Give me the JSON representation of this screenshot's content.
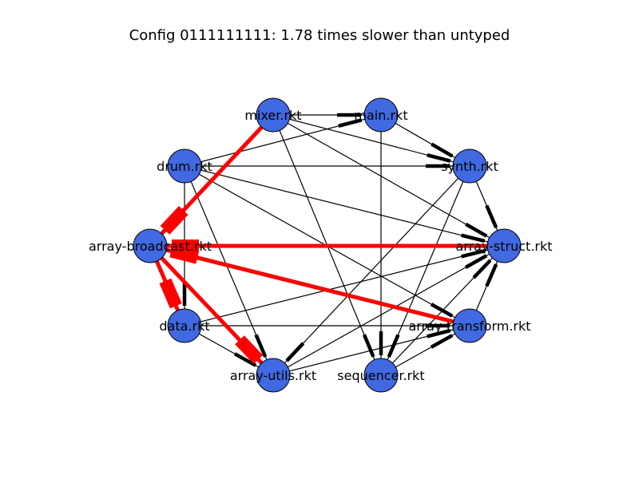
{
  "title": "Config 0111111111: 1.78 times slower than untyped",
  "colors": {
    "node_fill": "#4169e1",
    "node_stroke": "#000000",
    "edge_typed": "#000000",
    "edge_boundary": "#ff0000"
  },
  "nodes": [
    {
      "id": "main",
      "label": "main.rkt"
    },
    {
      "id": "mixer",
      "label": "mixer.rkt"
    },
    {
      "id": "drum",
      "label": "drum.rkt"
    },
    {
      "id": "broadcast",
      "label": "array-broadcast.rkt"
    },
    {
      "id": "data",
      "label": "data.rkt"
    },
    {
      "id": "utils",
      "label": "array-utils.rkt"
    },
    {
      "id": "sequencer",
      "label": "sequencer.rkt"
    },
    {
      "id": "transform",
      "label": "array-transform.rkt"
    },
    {
      "id": "struct",
      "label": "array-struct.rkt"
    },
    {
      "id": "synth",
      "label": "synth.rkt"
    }
  ],
  "edges": [
    {
      "from": "mixer",
      "to": "main",
      "kind": "typed"
    },
    {
      "from": "drum",
      "to": "main",
      "kind": "typed"
    },
    {
      "from": "main",
      "to": "synth",
      "kind": "typed"
    },
    {
      "from": "main",
      "to": "sequencer",
      "kind": "typed"
    },
    {
      "from": "mixer",
      "to": "synth",
      "kind": "typed"
    },
    {
      "from": "mixer",
      "to": "struct",
      "kind": "typed"
    },
    {
      "from": "mixer",
      "to": "sequencer",
      "kind": "typed"
    },
    {
      "from": "drum",
      "to": "synth",
      "kind": "typed"
    },
    {
      "from": "drum",
      "to": "struct",
      "kind": "typed"
    },
    {
      "from": "drum",
      "to": "data",
      "kind": "typed"
    },
    {
      "from": "drum",
      "to": "utils",
      "kind": "typed"
    },
    {
      "from": "drum",
      "to": "transform",
      "kind": "typed"
    },
    {
      "from": "synth",
      "to": "struct",
      "kind": "typed"
    },
    {
      "from": "synth",
      "to": "utils",
      "kind": "typed"
    },
    {
      "from": "synth",
      "to": "sequencer",
      "kind": "typed"
    },
    {
      "from": "data",
      "to": "struct",
      "kind": "typed"
    },
    {
      "from": "data",
      "to": "transform",
      "kind": "typed"
    },
    {
      "from": "data",
      "to": "utils",
      "kind": "typed"
    },
    {
      "from": "utils",
      "to": "struct",
      "kind": "typed"
    },
    {
      "from": "utils",
      "to": "transform",
      "kind": "typed"
    },
    {
      "from": "sequencer",
      "to": "struct",
      "kind": "typed"
    },
    {
      "from": "sequencer",
      "to": "transform",
      "kind": "typed"
    },
    {
      "from": "transform",
      "to": "struct",
      "kind": "typed"
    },
    {
      "from": "broadcast",
      "to": "data",
      "kind": "typed"
    },
    {
      "from": "mixer",
      "to": "broadcast",
      "kind": "boundary"
    },
    {
      "from": "struct",
      "to": "broadcast",
      "kind": "boundary"
    },
    {
      "from": "transform",
      "to": "broadcast",
      "kind": "boundary"
    },
    {
      "from": "broadcast",
      "to": "utils",
      "kind": "boundary"
    },
    {
      "from": "broadcast",
      "to": "data",
      "kind": "boundary"
    }
  ]
}
